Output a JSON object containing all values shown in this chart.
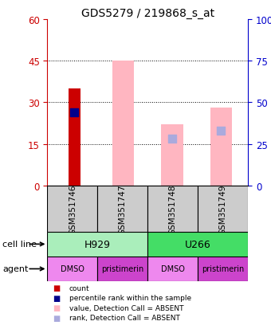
{
  "title": "GDS5279 / 219868_s_at",
  "samples": [
    "GSM351746",
    "GSM351747",
    "GSM351748",
    "GSM351749"
  ],
  "bar_count_values": [
    35,
    null,
    null,
    null
  ],
  "bar_absent_values": [
    null,
    45,
    22,
    28
  ],
  "dot_rank_values": [
    44,
    null,
    null,
    null
  ],
  "dot_absent_rank_values": [
    null,
    null,
    28,
    33
  ],
  "ylim_left": [
    0,
    60
  ],
  "ylim_right": [
    0,
    100
  ],
  "yticks_left": [
    0,
    15,
    30,
    45,
    60
  ],
  "yticks_right": [
    0,
    25,
    50,
    75,
    100
  ],
  "ytick_labels_right": [
    "0",
    "25",
    "50",
    "75",
    "100%"
  ],
  "cell_line_data": [
    {
      "label": "H929",
      "cols": [
        0,
        1
      ],
      "color": "#aaeebb"
    },
    {
      "label": "U266",
      "cols": [
        2,
        3
      ],
      "color": "#44dd66"
    }
  ],
  "agent_data": [
    {
      "label": "DMSO",
      "col": 0,
      "color": "#ee88ee"
    },
    {
      "label": "pristimerin",
      "col": 1,
      "color": "#cc44cc"
    },
    {
      "label": "DMSO",
      "col": 2,
      "color": "#ee88ee"
    },
    {
      "label": "pristimerin",
      "col": 3,
      "color": "#cc44cc"
    }
  ],
  "grid_yticks": [
    15,
    30,
    45
  ],
  "bar_width": 0.45,
  "dot_size": 55,
  "left_yaxis_color": "#cc0000",
  "right_yaxis_color": "#0000cc",
  "sample_box_color": "#cccccc",
  "count_color": "#cc0000",
  "absent_bar_color": "#ffb6c1",
  "rank_dot_color": "#00008b",
  "absent_rank_color": "#aaaadd",
  "legend_items": [
    {
      "color": "#cc0000",
      "label": "count"
    },
    {
      "color": "#00008b",
      "label": "percentile rank within the sample"
    },
    {
      "color": "#ffb6c1",
      "label": "value, Detection Call = ABSENT"
    },
    {
      "color": "#aaaadd",
      "label": "rank, Detection Call = ABSENT"
    }
  ]
}
